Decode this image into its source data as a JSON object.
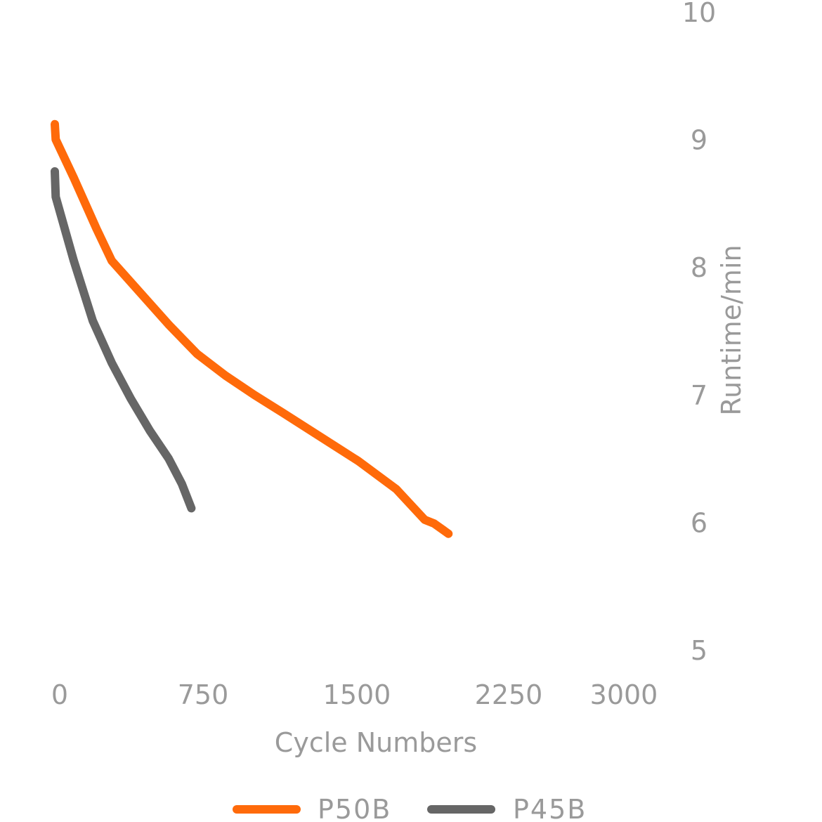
{
  "chart_data": {
    "type": "line",
    "xlabel": "Cycle Numbers",
    "ylabel": "Runtime/min",
    "xlim": [
      0,
      3000
    ],
    "ylim": [
      5,
      10
    ],
    "x_ticks": [
      "0",
      "750",
      "1500",
      "2250",
      "3000"
    ],
    "y_ticks": [
      "5",
      "6",
      "7",
      "8",
      "9",
      "10"
    ],
    "grid": false,
    "legend_position": "bottom",
    "y_axis_side": "right",
    "series": [
      {
        "name": "P50B",
        "color": "#ff6a0a",
        "x": [
          0,
          5,
          100,
          220,
          300,
          450,
          600,
          750,
          900,
          1050,
          1200,
          1400,
          1600,
          1800,
          1950,
          2000,
          2075
        ],
        "y": [
          9.12,
          9.0,
          8.7,
          8.3,
          8.05,
          7.8,
          7.55,
          7.32,
          7.15,
          7.0,
          6.86,
          6.67,
          6.48,
          6.26,
          6.02,
          5.99,
          5.91
        ]
      },
      {
        "name": "P45B",
        "color": "#666666",
        "x": [
          0,
          5,
          100,
          200,
          300,
          400,
          500,
          600,
          670,
          720
        ],
        "y": [
          8.75,
          8.55,
          8.05,
          7.58,
          7.25,
          6.97,
          6.72,
          6.5,
          6.3,
          6.11
        ]
      }
    ]
  }
}
